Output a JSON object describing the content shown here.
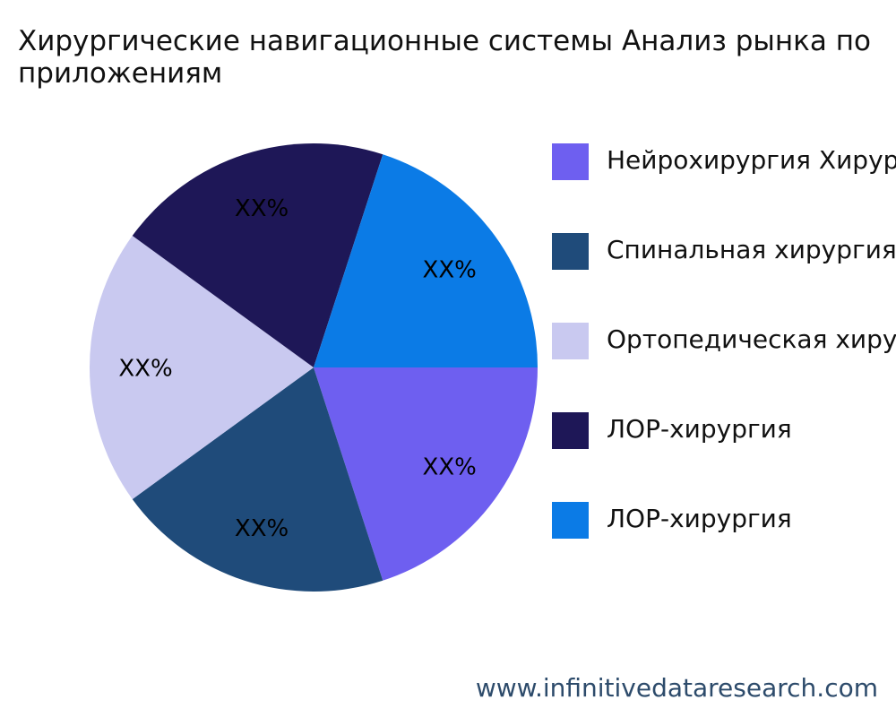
{
  "chart_data": {
    "type": "pie",
    "title": "Хирургические навигационные системы Анализ рынка по приложениям",
    "categories": [
      "Нейрохирургия Хирургия",
      "Спинальная хирургия",
      "Ортопедическая хирургия",
      "ЛОР-хирургия",
      "ЛОР-хирургия"
    ],
    "values": [
      20,
      20,
      20,
      20,
      20
    ],
    "value_labels": [
      "XX%",
      "XX%",
      "XX%",
      "XX%",
      "XX%"
    ],
    "colors": [
      "#6e5ff0",
      "#1f4b7a",
      "#c9c9f0",
      "#1e1757",
      "#0b7be6"
    ],
    "source": "www.infinitivedataresearch.com"
  }
}
